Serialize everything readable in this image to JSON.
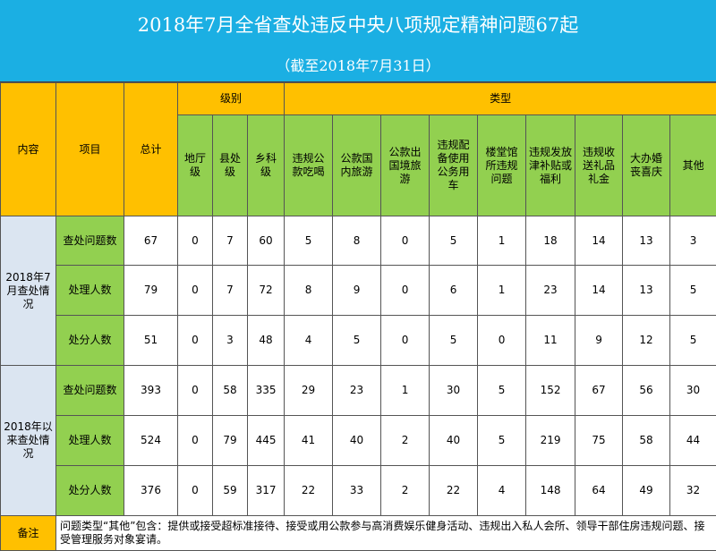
{
  "title": "2018年7月全省查处违反中央八项规定精神问题67起",
  "subtitle": "（截至2018年7月31日）",
  "headers": {
    "content": "内容",
    "item": "项目",
    "total": "总计",
    "level_group": "级别",
    "type_group": "类型",
    "levels": [
      "地厅级",
      "县处级",
      "乡科级"
    ],
    "types": [
      "违规公款吃喝",
      "公款国内旅游",
      "公款出国境旅游",
      "违规配备使用公务用车",
      "楼堂馆所违规问题",
      "违规发放津补贴或福利",
      "违规收送礼品礼金",
      "大办婚丧喜庆",
      "其他"
    ]
  },
  "sections": [
    {
      "label": "2018年7月查处情况",
      "rows": [
        {
          "item": "查处问题数",
          "values": [
            "67",
            "0",
            "7",
            "60",
            "5",
            "8",
            "0",
            "5",
            "1",
            "18",
            "14",
            "13",
            "3"
          ]
        },
        {
          "item": "处理人数",
          "values": [
            "79",
            "0",
            "7",
            "72",
            "8",
            "9",
            "0",
            "6",
            "1",
            "23",
            "14",
            "13",
            "5"
          ]
        },
        {
          "item": "处分人数",
          "values": [
            "51",
            "0",
            "3",
            "48",
            "4",
            "5",
            "0",
            "5",
            "0",
            "11",
            "9",
            "12",
            "5"
          ]
        }
      ]
    },
    {
      "label": "2018年以来查处情况",
      "rows": [
        {
          "item": "查处问题数",
          "values": [
            "393",
            "0",
            "58",
            "335",
            "29",
            "23",
            "1",
            "30",
            "5",
            "152",
            "67",
            "56",
            "30"
          ]
        },
        {
          "item": "处理人数",
          "values": [
            "524",
            "0",
            "79",
            "445",
            "41",
            "40",
            "2",
            "40",
            "5",
            "219",
            "75",
            "58",
            "44"
          ]
        },
        {
          "item": "处分人数",
          "values": [
            "376",
            "0",
            "59",
            "317",
            "22",
            "33",
            "2",
            "22",
            "4",
            "148",
            "64",
            "49",
            "32"
          ]
        }
      ]
    }
  ],
  "note": {
    "label": "备注",
    "text": "问题类型“其他”包含：提供或接受超标准接待、接受或用公款参与高消费娱乐健身活动、违规出入私人会所、领导干部住房违规问题、接受管理服务对象宴请。"
  },
  "colors": {
    "banner": "#1bafe3",
    "header_yellow": "#ffc000",
    "header_green": "#92d050",
    "section_blue": "#dbe5f1"
  }
}
